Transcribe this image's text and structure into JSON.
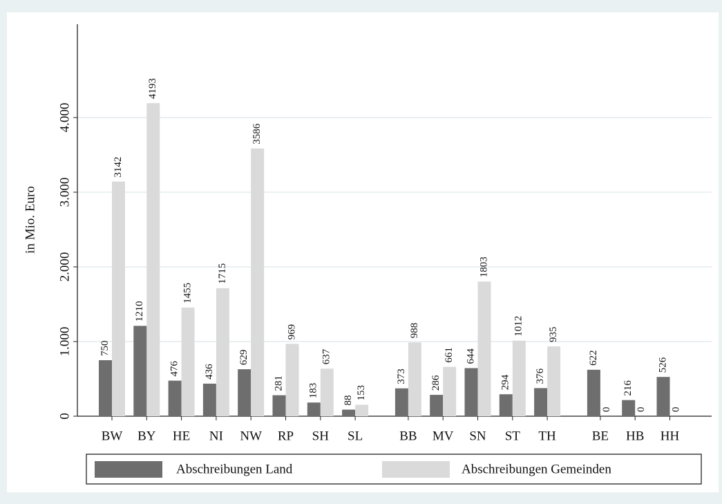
{
  "chart_data": {
    "type": "bar",
    "y_label": "in Mio. Euro",
    "categories": [
      "BW",
      "BY",
      "HE",
      "NI",
      "NW",
      "RP",
      "SH",
      "SL",
      "BB",
      "MV",
      "SN",
      "ST",
      "TH",
      "BE",
      "HB",
      "HH"
    ],
    "series": [
      {
        "name": "Abschreibungen Land",
        "color": "#6e6e6e",
        "values": [
          750,
          1210,
          476,
          436,
          629,
          281,
          183,
          88,
          373,
          286,
          644,
          294,
          376,
          622,
          216,
          526
        ]
      },
      {
        "name": "Abschreibungen Gemeinden",
        "color": "#dadada",
        "values": [
          3142,
          4193,
          1455,
          1715,
          3586,
          969,
          637,
          153,
          988,
          661,
          1803,
          1012,
          935,
          0,
          0,
          0
        ]
      }
    ],
    "ylim": [
      0,
      5250
    ],
    "yticks": [
      0,
      {
        "value": 1000,
        "label": "1.000"
      },
      {
        "value": 2000,
        "label": "2.000"
      },
      {
        "value": 3000,
        "label": "3.000"
      },
      {
        "value": 4000,
        "label": "4.000"
      }
    ],
    "grid": true
  }
}
